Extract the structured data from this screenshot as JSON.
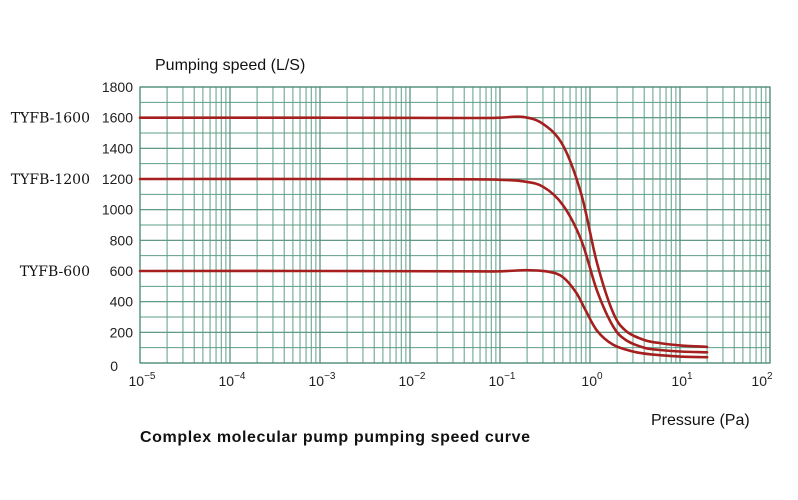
{
  "chart_data": {
    "type": "line",
    "title": "Complex molecular pump pumping speed curve",
    "ylabel": "Pumping speed (L/S)",
    "xlabel": "Pressure (Pa)",
    "xscale": "log",
    "xlim": [
      1e-05,
      100
    ],
    "ylim": [
      0,
      1800
    ],
    "y_ticks": [
      "0",
      "200",
      "400",
      "600",
      "800",
      "1000",
      "1200",
      "1400",
      "1600",
      "1800"
    ],
    "x_ticks": [
      {
        "base": "10",
        "exp": "−5"
      },
      {
        "base": "10",
        "exp": "−4"
      },
      {
        "base": "10",
        "exp": "−3"
      },
      {
        "base": "10",
        "exp": "−2"
      },
      {
        "base": "10",
        "exp": "−1"
      },
      {
        "base": "10",
        "exp": "0"
      },
      {
        "base": "10",
        "exp": "1"
      },
      {
        "base": "10",
        "exp": "2"
      }
    ],
    "grid": true,
    "series": [
      {
        "name": "TYFB-1600",
        "color": "#a51f1f",
        "x": [
          1e-05,
          0.001,
          0.05,
          0.1,
          0.18,
          0.3,
          0.5,
          0.8,
          1.2,
          1.8,
          2.5,
          4,
          6,
          10,
          20
        ],
        "y": [
          1600,
          1600,
          1598,
          1600,
          1605,
          1560,
          1420,
          1100,
          650,
          330,
          210,
          150,
          130,
          115,
          105
        ]
      },
      {
        "name": "TYFB-1200",
        "color": "#a51f1f",
        "x": [
          1e-05,
          0.001,
          0.05,
          0.1,
          0.18,
          0.3,
          0.5,
          0.8,
          1.2,
          1.8,
          2.5,
          4,
          6,
          10,
          20
        ],
        "y": [
          1200,
          1200,
          1198,
          1195,
          1185,
          1150,
          1030,
          800,
          470,
          240,
          150,
          100,
          85,
          75,
          70
        ]
      },
      {
        "name": "TYFB-600",
        "color": "#a51f1f",
        "x": [
          1e-05,
          0.001,
          0.05,
          0.1,
          0.2,
          0.35,
          0.5,
          0.7,
          0.9,
          1.2,
          1.8,
          3,
          5,
          10,
          20
        ],
        "y": [
          600,
          600,
          598,
          598,
          605,
          595,
          560,
          460,
          340,
          210,
          120,
          75,
          55,
          42,
          38
        ]
      }
    ]
  }
}
